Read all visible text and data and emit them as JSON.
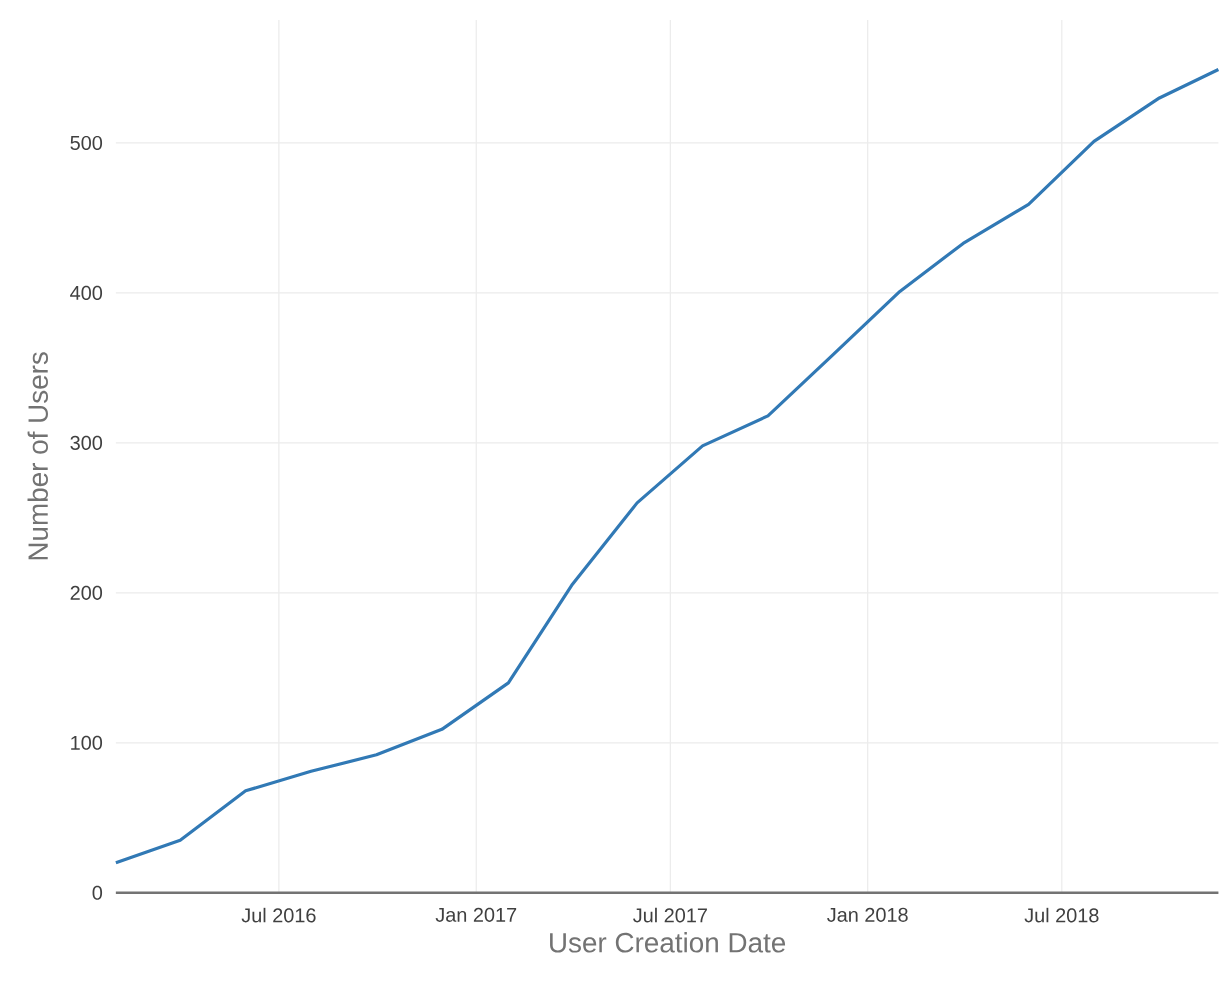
{
  "chart_data": {
    "type": "line",
    "xlabel": "User Creation Date",
    "ylabel": "Number of Users",
    "x": [
      "2016-01-31",
      "2016-03-31",
      "2016-05-31",
      "2016-07-31",
      "2016-09-30",
      "2016-11-30",
      "2017-01-31",
      "2017-03-31",
      "2017-05-31",
      "2017-07-31",
      "2017-09-30",
      "2017-11-30",
      "2018-01-31",
      "2018-03-31",
      "2018-05-31",
      "2018-07-31",
      "2018-09-30",
      "2018-11-24"
    ],
    "values": [
      20,
      35,
      68,
      81,
      92,
      109,
      140,
      205,
      260,
      298,
      318,
      359,
      401,
      433,
      459,
      501,
      530,
      549
    ],
    "color": "#3179b5",
    "line_style": "solid",
    "marker": "none",
    "xlim": [
      "2016-01-31",
      "2018-11-24"
    ],
    "ylim": [
      0,
      582
    ],
    "xticks": [
      {
        "value": "2016-07-01",
        "label": "Jul 2016"
      },
      {
        "value": "2017-01-01",
        "label": "Jan 2017"
      },
      {
        "value": "2017-07-01",
        "label": "Jul 2017"
      },
      {
        "value": "2018-01-01",
        "label": "Jan 2018"
      },
      {
        "value": "2018-07-01",
        "label": "Jul 2018"
      }
    ],
    "yticks": [
      0,
      100,
      200,
      300,
      400,
      500
    ],
    "grid": true
  }
}
